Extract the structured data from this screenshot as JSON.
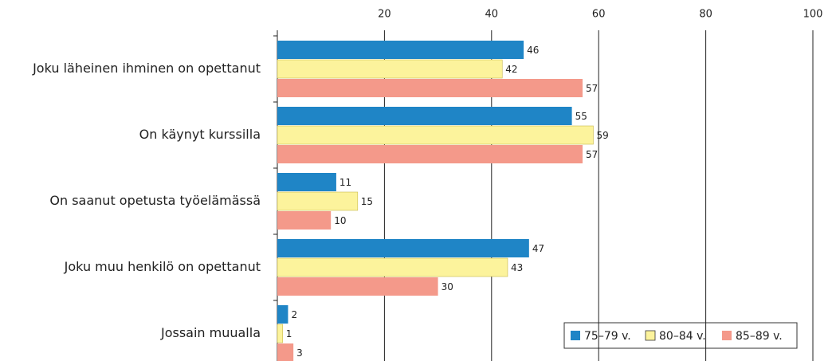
{
  "chart_data": {
    "type": "bar",
    "orientation": "horizontal",
    "categories": [
      "Joku läheinen ihminen on opettanut",
      "On käynyt kurssilla",
      "On saanut opetusta työelämässä",
      "Joku muu henkilö on opettanut",
      "Jossain muualla"
    ],
    "series": [
      {
        "name": "75–79 v.",
        "color": "#1f85c6",
        "values": [
          46,
          55,
          11,
          47,
          2
        ]
      },
      {
        "name": "80–84 v.",
        "color": "#fcf39c",
        "values": [
          42,
          59,
          15,
          43,
          1
        ]
      },
      {
        "name": "85–89 v.",
        "color": "#f4998a",
        "values": [
          57,
          57,
          10,
          30,
          3
        ]
      }
    ],
    "xlim": [
      0,
      100
    ],
    "xticks": [
      20,
      40,
      60,
      80,
      100
    ],
    "grid": true,
    "legend": "lower right"
  }
}
